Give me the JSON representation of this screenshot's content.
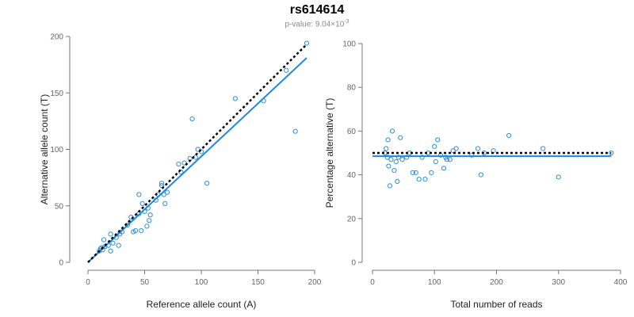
{
  "title": "rs614614",
  "subtitle": {
    "prefix": "p-value: 9.04×10",
    "exponent": "-3"
  },
  "colors": {
    "points": "#2b8fd6",
    "fit_line": "#1e88e5",
    "reference_line": "#000000"
  },
  "chart_data": [
    {
      "type": "scatter",
      "xlabel": "Reference allele count (A)",
      "ylabel": "Alternative allele count (T)",
      "xlim": [
        0,
        200
      ],
      "ylim": [
        0,
        200
      ],
      "xticks": [
        0,
        50,
        100,
        150,
        200
      ],
      "yticks": [
        0,
        50,
        100,
        150,
        200
      ],
      "grid": false,
      "points": [
        [
          10,
          10
        ],
        [
          11,
          12
        ],
        [
          12,
          13
        ],
        [
          13,
          11
        ],
        [
          14,
          20
        ],
        [
          15,
          14
        ],
        [
          18,
          15
        ],
        [
          20,
          10
        ],
        [
          20,
          25
        ],
        [
          22,
          17
        ],
        [
          25,
          22
        ],
        [
          27,
          15
        ],
        [
          28,
          25
        ],
        [
          30,
          27
        ],
        [
          35,
          33
        ],
        [
          38,
          40
        ],
        [
          40,
          27
        ],
        [
          42,
          28
        ],
        [
          45,
          60
        ],
        [
          45,
          43
        ],
        [
          47,
          28
        ],
        [
          48,
          52
        ],
        [
          50,
          45
        ],
        [
          52,
          32
        ],
        [
          53,
          48
        ],
        [
          54,
          37
        ],
        [
          55,
          42
        ],
        [
          60,
          55
        ],
        [
          62,
          60
        ],
        [
          65,
          70
        ],
        [
          65,
          68
        ],
        [
          67,
          60
        ],
        [
          68,
          52
        ],
        [
          70,
          62
        ],
        [
          80,
          87
        ],
        [
          82,
          80
        ],
        [
          85,
          88
        ],
        [
          90,
          92
        ],
        [
          92,
          127
        ],
        [
          95,
          93
        ],
        [
          97,
          100
        ],
        [
          100,
          98
        ],
        [
          105,
          70
        ],
        [
          130,
          145
        ],
        [
          155,
          143
        ],
        [
          175,
          170
        ],
        [
          183,
          116
        ],
        [
          193,
          194
        ]
      ],
      "fit_line": [
        [
          0,
          0
        ],
        [
          193,
          181
        ]
      ],
      "reference_line": [
        [
          0,
          0
        ],
        [
          193,
          193
        ]
      ]
    },
    {
      "type": "scatter",
      "xlabel": "Total number of reads",
      "ylabel": "Percentage alternative (T)",
      "xlim": [
        0,
        400
      ],
      "ylim": [
        0,
        100
      ],
      "xticks": [
        0,
        100,
        200,
        300,
        400
      ],
      "yticks": [
        0,
        20,
        40,
        60,
        80,
        100
      ],
      "grid": false,
      "points": [
        [
          20,
          50
        ],
        [
          22,
          52
        ],
        [
          24,
          48
        ],
        [
          25,
          56
        ],
        [
          26,
          44
        ],
        [
          28,
          35
        ],
        [
          30,
          47
        ],
        [
          32,
          60
        ],
        [
          35,
          42
        ],
        [
          38,
          46
        ],
        [
          40,
          37
        ],
        [
          42,
          48
        ],
        [
          45,
          57
        ],
        [
          48,
          47
        ],
        [
          55,
          48
        ],
        [
          60,
          50
        ],
        [
          65,
          41
        ],
        [
          70,
          41
        ],
        [
          75,
          38
        ],
        [
          80,
          48
        ],
        [
          85,
          38
        ],
        [
          90,
          50
        ],
        [
          95,
          41
        ],
        [
          100,
          53
        ],
        [
          102,
          46
        ],
        [
          105,
          56
        ],
        [
          110,
          49
        ],
        [
          115,
          43
        ],
        [
          118,
          48
        ],
        [
          120,
          47
        ],
        [
          125,
          47
        ],
        [
          130,
          51
        ],
        [
          135,
          52
        ],
        [
          160,
          49
        ],
        [
          170,
          52
        ],
        [
          175,
          40
        ],
        [
          180,
          50
        ],
        [
          195,
          51
        ],
        [
          220,
          58
        ],
        [
          275,
          52
        ],
        [
          300,
          39
        ],
        [
          385,
          50
        ]
      ],
      "fit_line": [
        [
          0,
          48.5
        ],
        [
          385,
          48.5
        ]
      ],
      "reference_line": [
        [
          0,
          50
        ],
        [
          385,
          50
        ]
      ]
    }
  ]
}
